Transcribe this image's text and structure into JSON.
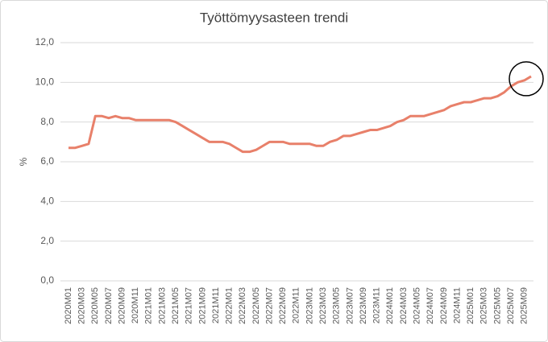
{
  "chart_data": {
    "type": "line",
    "title": "Työttömyysasteen trendi",
    "y_label": "%",
    "categories": [
      "2020M01",
      null,
      "2020M03",
      null,
      "2020M05",
      null,
      "2020M07",
      null,
      "2020M09",
      null,
      "2020M11",
      null,
      "2021M01",
      null,
      "2021M03",
      null,
      "2021M05",
      null,
      "2021M07",
      null,
      "2021M09",
      null,
      "2021M11",
      null,
      "2022M01",
      null,
      "2022M03",
      null,
      "2022M05",
      null,
      "2022M07",
      null,
      "2022M09",
      null,
      "2022M11",
      null,
      "2023M01",
      null,
      "2023M03",
      null,
      "2023M05",
      null,
      "2023M07",
      null,
      "2023M09",
      null,
      "2023M11",
      null,
      "2024M01",
      null,
      "2024M03",
      null,
      "2024M05",
      null,
      "2024M07",
      null,
      "2024M09",
      null,
      "2024M11",
      null,
      "2025M01",
      null,
      "2025M03",
      null,
      "2025M05",
      null,
      "2025M07",
      null,
      "2025M09",
      null
    ],
    "values": [
      6.7,
      6.7,
      6.8,
      6.9,
      8.3,
      8.3,
      8.2,
      8.3,
      8.2,
      8.2,
      8.1,
      8.1,
      8.1,
      8.1,
      8.1,
      8.1,
      8.0,
      7.8,
      7.6,
      7.4,
      7.2,
      7.0,
      7.0,
      7.0,
      6.9,
      6.7,
      6.5,
      6.5,
      6.6,
      6.8,
      7.0,
      7.0,
      7.0,
      6.9,
      6.9,
      6.9,
      6.9,
      6.8,
      6.8,
      7.0,
      7.1,
      7.3,
      7.3,
      7.4,
      7.5,
      7.6,
      7.6,
      7.7,
      7.8,
      8.0,
      8.1,
      8.3,
      8.3,
      8.3,
      8.4,
      8.5,
      8.6,
      8.8,
      8.9,
      9.0,
      9.0,
      9.1,
      9.2,
      9.2,
      9.3,
      9.5,
      9.8,
      10.0,
      10.1,
      10.3
    ],
    "color": "#e8806a",
    "ylim": [
      0,
      12
    ],
    "yticks": [
      {
        "value": 0,
        "label": "0,0"
      },
      {
        "value": 2,
        "label": "2,0"
      },
      {
        "value": 4,
        "label": "4,0"
      },
      {
        "value": 6,
        "label": "6,0"
      },
      {
        "value": 8,
        "label": "8,0"
      },
      {
        "value": 10,
        "label": "10,0"
      },
      {
        "value": 12,
        "label": "12,0"
      }
    ],
    "grid": true
  }
}
